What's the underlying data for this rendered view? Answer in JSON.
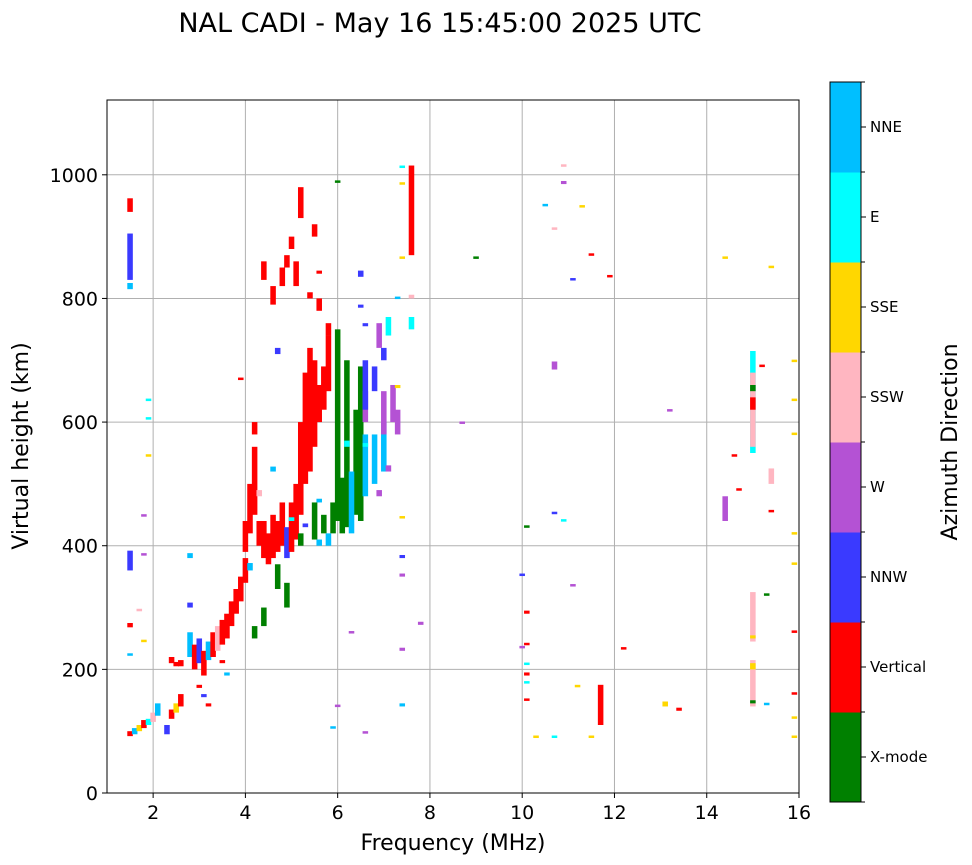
{
  "chart_data": {
    "type": "scatter",
    "title": "NAL CADI - May 16 15:45:00 2025 UTC",
    "xlabel": "Frequency (MHz)",
    "ylabel": "Virtual height (km)",
    "xlim": [
      1,
      16
    ],
    "ylim": [
      0,
      1121
    ],
    "xticks": [
      2,
      4,
      6,
      8,
      10,
      12,
      14,
      16
    ],
    "yticks": [
      0,
      200,
      400,
      600,
      800,
      1000
    ],
    "grid": true,
    "colorbar": {
      "label": "Azimuth Direction",
      "categories": [
        "X-mode",
        "Vertical",
        "NNW",
        "W",
        "SSW",
        "SSE",
        "E",
        "NNE"
      ],
      "colors": [
        "#008000",
        "#ff0000",
        "#3a3aff",
        "#b452d4",
        "#ffb6c1",
        "#ffd700",
        "#00ffff",
        "#00bfff"
      ]
    },
    "point_format": "[frequency_MHz, height_low_km, height_high_km, category_index]",
    "points": [
      [
        1.5,
        940,
        962,
        1
      ],
      [
        1.5,
        830,
        905,
        2
      ],
      [
        1.5,
        815,
        825,
        7
      ],
      [
        1.5,
        360,
        392,
        2
      ],
      [
        1.5,
        268,
        275,
        1
      ],
      [
        1.5,
        222,
        226,
        7
      ],
      [
        1.5,
        92,
        100,
        1
      ],
      [
        1.9,
        635,
        638,
        6
      ],
      [
        1.9,
        605,
        608,
        6
      ],
      [
        1.9,
        545,
        548,
        5
      ],
      [
        1.8,
        448,
        451,
        3
      ],
      [
        1.8,
        385,
        388,
        3
      ],
      [
        1.7,
        295,
        298,
        4
      ],
      [
        1.8,
        245,
        248,
        5
      ],
      [
        1.6,
        95,
        105,
        7
      ],
      [
        1.7,
        100,
        110,
        5
      ],
      [
        1.8,
        105,
        118,
        1
      ],
      [
        1.9,
        110,
        120,
        6
      ],
      [
        2.0,
        115,
        130,
        4
      ],
      [
        2.1,
        125,
        145,
        7
      ],
      [
        2.3,
        95,
        110,
        2
      ],
      [
        2.4,
        120,
        135,
        1
      ],
      [
        2.5,
        130,
        145,
        5
      ],
      [
        2.6,
        140,
        160,
        1
      ],
      [
        2.4,
        210,
        220,
        1
      ],
      [
        2.5,
        205,
        212,
        1
      ],
      [
        2.6,
        205,
        215,
        1
      ],
      [
        2.8,
        300,
        308,
        2
      ],
      [
        2.8,
        380,
        388,
        7
      ],
      [
        2.8,
        220,
        260,
        7
      ],
      [
        2.9,
        200,
        240,
        1
      ],
      [
        3.0,
        210,
        250,
        2
      ],
      [
        3.1,
        190,
        230,
        1
      ],
      [
        3.2,
        215,
        245,
        7
      ],
      [
        3.3,
        220,
        260,
        1
      ],
      [
        3.4,
        230,
        270,
        4
      ],
      [
        3.5,
        240,
        280,
        1
      ],
      [
        3.6,
        250,
        290,
        1
      ],
      [
        3.7,
        270,
        310,
        1
      ],
      [
        3.8,
        290,
        330,
        1
      ],
      [
        3.9,
        310,
        350,
        1
      ],
      [
        3.0,
        170,
        175,
        1
      ],
      [
        3.1,
        155,
        160,
        2
      ],
      [
        3.2,
        140,
        145,
        1
      ],
      [
        3.6,
        190,
        195,
        7
      ],
      [
        3.5,
        210,
        215,
        1
      ],
      [
        4.0,
        340,
        380,
        1
      ],
      [
        4.0,
        390,
        440,
        1
      ],
      [
        4.1,
        420,
        500,
        1
      ],
      [
        4.2,
        450,
        560,
        1
      ],
      [
        4.2,
        580,
        600,
        1
      ],
      [
        4.3,
        400,
        440,
        1
      ],
      [
        4.4,
        380,
        440,
        1
      ],
      [
        4.5,
        370,
        420,
        1
      ],
      [
        4.6,
        380,
        450,
        1
      ],
      [
        4.7,
        390,
        440,
        1
      ],
      [
        4.8,
        400,
        470,
        1
      ],
      [
        4.9,
        380,
        430,
        2
      ],
      [
        5.0,
        390,
        470,
        1
      ],
      [
        5.1,
        410,
        500,
        1
      ],
      [
        5.2,
        450,
        600,
        1
      ],
      [
        5.3,
        500,
        680,
        1
      ],
      [
        5.4,
        520,
        720,
        1
      ],
      [
        5.5,
        560,
        700,
        1
      ],
      [
        5.6,
        600,
        660,
        1
      ],
      [
        5.7,
        620,
        690,
        1
      ],
      [
        5.8,
        650,
        740,
        1
      ],
      [
        3.9,
        668,
        672,
        1
      ],
      [
        4.1,
        360,
        372,
        7
      ],
      [
        4.3,
        480,
        490,
        4
      ],
      [
        4.6,
        520,
        528,
        7
      ],
      [
        5.0,
        440,
        446,
        6
      ],
      [
        5.3,
        430,
        436,
        2
      ],
      [
        5.6,
        470,
        476,
        7
      ],
      [
        4.2,
        250,
        270,
        0
      ],
      [
        4.4,
        270,
        300,
        0
      ],
      [
        4.7,
        330,
        370,
        0
      ],
      [
        4.9,
        300,
        340,
        0
      ],
      [
        5.2,
        400,
        420,
        0
      ],
      [
        5.5,
        410,
        470,
        0
      ],
      [
        5.7,
        420,
        450,
        0
      ],
      [
        5.9,
        420,
        470,
        0
      ],
      [
        6.0,
        440,
        750,
        0
      ],
      [
        6.1,
        420,
        510,
        0
      ],
      [
        6.2,
        430,
        700,
        0
      ],
      [
        6.4,
        450,
        620,
        0
      ],
      [
        6.5,
        440,
        690,
        0
      ],
      [
        5.6,
        400,
        410,
        7
      ],
      [
        5.8,
        400,
        420,
        7
      ],
      [
        6.3,
        420,
        520,
        7
      ],
      [
        6.6,
        480,
        580,
        7
      ],
      [
        6.8,
        500,
        580,
        7
      ],
      [
        7.0,
        520,
        600,
        7
      ],
      [
        6.2,
        560,
        570,
        6
      ],
      [
        6.6,
        560,
        566,
        6
      ],
      [
        6.6,
        600,
        650,
        3
      ],
      [
        7.0,
        580,
        650,
        3
      ],
      [
        7.2,
        600,
        660,
        3
      ],
      [
        7.3,
        580,
        620,
        3
      ],
      [
        6.9,
        480,
        490,
        3
      ],
      [
        7.1,
        520,
        530,
        3
      ],
      [
        6.6,
        620,
        700,
        2
      ],
      [
        6.8,
        650,
        690,
        2
      ],
      [
        7.0,
        700,
        720,
        2
      ],
      [
        4.7,
        710,
        720,
        2
      ],
      [
        6.5,
        835,
        845,
        2
      ],
      [
        6.5,
        785,
        790,
        2
      ],
      [
        6.6,
        755,
        760,
        2
      ],
      [
        4.4,
        830,
        860,
        1
      ],
      [
        4.6,
        790,
        820,
        1
      ],
      [
        4.8,
        820,
        850,
        1
      ],
      [
        4.9,
        850,
        870,
        1
      ],
      [
        5.0,
        880,
        900,
        1
      ],
      [
        5.1,
        820,
        860,
        1
      ],
      [
        5.2,
        930,
        980,
        1
      ],
      [
        5.5,
        900,
        920,
        1
      ],
      [
        5.6,
        780,
        800,
        1
      ],
      [
        5.8,
        740,
        760,
        1
      ],
      [
        5.4,
        800,
        810,
        1
      ],
      [
        5.6,
        840,
        845,
        1
      ],
      [
        6.0,
        988,
        991,
        0
      ],
      [
        6.9,
        720,
        760,
        3
      ],
      [
        7.1,
        740,
        770,
        6
      ],
      [
        7.3,
        800,
        803,
        7
      ],
      [
        7.6,
        870,
        1015,
        1
      ],
      [
        7.6,
        750,
        770,
        6
      ],
      [
        7.6,
        800,
        806,
        4
      ],
      [
        7.8,
        272,
        277,
        3
      ],
      [
        7.4,
        140,
        145,
        7
      ],
      [
        7.4,
        230,
        235,
        3
      ],
      [
        7.4,
        350,
        355,
        3
      ],
      [
        7.4,
        380,
        385,
        2
      ],
      [
        7.4,
        445,
        448,
        5
      ],
      [
        7.4,
        985,
        988,
        5
      ],
      [
        7.4,
        1012,
        1015,
        6
      ],
      [
        7.4,
        865,
        868,
        5
      ],
      [
        7.3,
        655,
        660,
        5
      ],
      [
        6.3,
        258,
        262,
        3
      ],
      [
        6.0,
        140,
        143,
        3
      ],
      [
        5.9,
        105,
        108,
        7
      ],
      [
        6.6,
        98,
        100,
        3
      ],
      [
        9.0,
        865,
        868,
        0
      ],
      [
        10.1,
        430,
        433,
        0
      ],
      [
        10.0,
        352,
        355,
        2
      ],
      [
        10.1,
        290,
        295,
        1
      ],
      [
        10.1,
        240,
        243,
        1
      ],
      [
        10.1,
        190,
        195,
        1
      ],
      [
        10.1,
        150,
        153,
        1
      ],
      [
        10.0,
        235,
        238,
        3
      ],
      [
        10.1,
        208,
        211,
        6
      ],
      [
        10.1,
        178,
        181,
        6
      ],
      [
        10.3,
        90,
        93,
        5
      ],
      [
        10.7,
        90,
        93,
        6
      ],
      [
        10.9,
        985,
        990,
        3
      ],
      [
        10.5,
        950,
        953,
        7
      ],
      [
        10.7,
        912,
        915,
        4
      ],
      [
        10.9,
        1015,
        1017,
        4
      ],
      [
        11.3,
        948,
        951,
        5
      ],
      [
        11.5,
        870,
        873,
        1
      ],
      [
        11.1,
        830,
        833,
        2
      ],
      [
        11.9,
        835,
        838,
        1
      ],
      [
        10.7,
        685,
        698,
        3
      ],
      [
        10.7,
        452,
        455,
        2
      ],
      [
        10.9,
        440,
        443,
        6
      ],
      [
        11.1,
        335,
        338,
        3
      ],
      [
        13.2,
        618,
        621,
        3
      ],
      [
        8.7,
        598,
        601,
        3
      ],
      [
        11.5,
        90,
        93,
        5
      ],
      [
        11.2,
        172,
        175,
        5
      ],
      [
        11.7,
        110,
        175,
        1
      ],
      [
        12.2,
        233,
        236,
        1
      ],
      [
        13.1,
        140,
        148,
        5
      ],
      [
        13.4,
        133,
        138,
        1
      ],
      [
        14.4,
        865,
        868,
        5
      ],
      [
        15.4,
        850,
        853,
        5
      ],
      [
        14.4,
        440,
        480,
        3
      ],
      [
        14.6,
        545,
        548,
        1
      ],
      [
        14.7,
        490,
        493,
        1
      ],
      [
        15.0,
        140,
        215,
        4
      ],
      [
        15.0,
        245,
        325,
        4
      ],
      [
        15.0,
        550,
        715,
        6
      ],
      [
        15.0,
        560,
        680,
        4
      ],
      [
        15.0,
        620,
        640,
        1
      ],
      [
        15.0,
        650,
        660,
        0
      ],
      [
        15.0,
        145,
        150,
        0
      ],
      [
        15.0,
        250,
        255,
        5
      ],
      [
        15.0,
        200,
        210,
        5
      ],
      [
        15.2,
        690,
        693,
        1
      ],
      [
        15.4,
        500,
        525,
        4
      ],
      [
        15.4,
        455,
        458,
        1
      ],
      [
        15.3,
        320,
        323,
        0
      ],
      [
        15.3,
        143,
        146,
        7
      ],
      [
        15.9,
        697,
        701,
        5
      ],
      [
        15.9,
        635,
        638,
        5
      ],
      [
        15.9,
        580,
        583,
        5
      ],
      [
        15.9,
        418,
        422,
        5
      ],
      [
        15.9,
        370,
        373,
        5
      ],
      [
        15.9,
        260,
        263,
        1
      ],
      [
        15.9,
        160,
        163,
        1
      ],
      [
        15.9,
        120,
        124,
        5
      ],
      [
        15.9,
        90,
        93,
        5
      ]
    ]
  }
}
